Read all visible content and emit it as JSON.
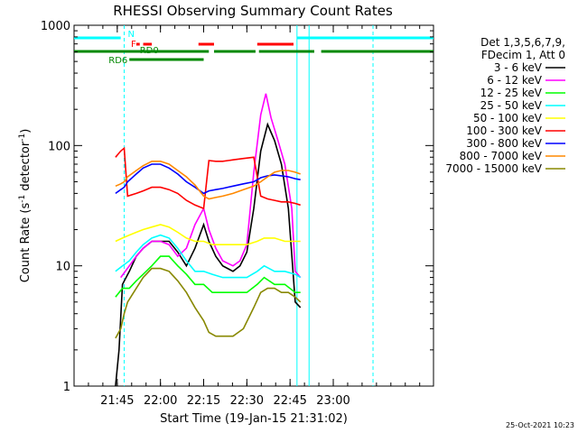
{
  "chart_data": {
    "type": "line",
    "title": "RHESSI Observing Summary Count Rates",
    "xlabel": "Start Time (19-Jan-15 21:31:02)",
    "ylabel_prefix": "Count Rate (s",
    "ylabel_mid": " detector",
    "ylabel_suffix": ")",
    "ylabel_exp": "-1",
    "yscale": "log",
    "ylim": [
      1,
      1000
    ],
    "xlim_minutes": [
      21.5,
      23.58
    ],
    "x_ticks": [
      {
        "label": "21:45",
        "t": 21.75
      },
      {
        "label": "22:00",
        "t": 22.0
      },
      {
        "label": "22:15",
        "t": 22.25
      },
      {
        "label": "22:30",
        "t": 22.5
      },
      {
        "label": "22:45",
        "t": 22.75
      },
      {
        "label": "23:00",
        "t": 23.0
      }
    ],
    "y_ticks": [
      {
        "label": "1",
        "v": 1
      },
      {
        "label": "10",
        "v": 10
      },
      {
        "label": "100",
        "v": 100
      },
      {
        "label": "1000",
        "v": 1000
      }
    ],
    "legend_header": [
      "Det 1,3,5,6,7,9,",
      "FDecim 1, Att 0"
    ],
    "series": [
      {
        "name": "3 - 6 keV",
        "color": "#000000",
        "points": [
          [
            21.74,
            1
          ],
          [
            21.76,
            2
          ],
          [
            21.78,
            7
          ],
          [
            21.82,
            9
          ],
          [
            21.86,
            12
          ],
          [
            21.9,
            14
          ],
          [
            21.95,
            16
          ],
          [
            22.0,
            16
          ],
          [
            22.05,
            16
          ],
          [
            22.1,
            13
          ],
          [
            22.15,
            10
          ],
          [
            22.2,
            14
          ],
          [
            22.25,
            22
          ],
          [
            22.28,
            16
          ],
          [
            22.32,
            12
          ],
          [
            22.36,
            10
          ],
          [
            22.42,
            9
          ],
          [
            22.46,
            10
          ],
          [
            22.5,
            13
          ],
          [
            22.54,
            30
          ],
          [
            22.58,
            90
          ],
          [
            22.62,
            150
          ],
          [
            22.66,
            110
          ],
          [
            22.7,
            70
          ],
          [
            22.74,
            30
          ],
          [
            22.78,
            5
          ],
          [
            22.81,
            4.5
          ]
        ]
      },
      {
        "name": "6 - 12 keV",
        "color": "#ff00ff",
        "points": [
          [
            21.77,
            8
          ],
          [
            21.82,
            10
          ],
          [
            21.86,
            12
          ],
          [
            21.9,
            14
          ],
          [
            21.95,
            16
          ],
          [
            22.0,
            16
          ],
          [
            22.05,
            15
          ],
          [
            22.1,
            12
          ],
          [
            22.15,
            14
          ],
          [
            22.2,
            22
          ],
          [
            22.25,
            30
          ],
          [
            22.28,
            20
          ],
          [
            22.32,
            14
          ],
          [
            22.36,
            11
          ],
          [
            22.42,
            10
          ],
          [
            22.46,
            11
          ],
          [
            22.5,
            15
          ],
          [
            22.54,
            60
          ],
          [
            22.58,
            180
          ],
          [
            22.61,
            270
          ],
          [
            22.64,
            170
          ],
          [
            22.68,
            110
          ],
          [
            22.72,
            70
          ],
          [
            22.76,
            30
          ],
          [
            22.78,
            9
          ],
          [
            22.81,
            8
          ]
        ]
      },
      {
        "name": "12 - 25 keV",
        "color": "#00ff00",
        "points": [
          [
            21.74,
            5.5
          ],
          [
            21.78,
            6.5
          ],
          [
            21.82,
            6.5
          ],
          [
            21.86,
            7.5
          ],
          [
            21.9,
            8.5
          ],
          [
            21.95,
            10
          ],
          [
            22.0,
            12
          ],
          [
            22.05,
            12
          ],
          [
            22.1,
            10
          ],
          [
            22.15,
            8.5
          ],
          [
            22.2,
            7
          ],
          [
            22.25,
            7
          ],
          [
            22.3,
            6
          ],
          [
            22.36,
            6
          ],
          [
            22.42,
            6
          ],
          [
            22.5,
            6
          ],
          [
            22.56,
            7
          ],
          [
            22.6,
            8
          ],
          [
            22.66,
            7
          ],
          [
            22.72,
            7
          ],
          [
            22.78,
            6
          ],
          [
            22.81,
            6
          ]
        ]
      },
      {
        "name": "25 - 50 keV",
        "color": "#00ffff",
        "points": [
          [
            21.74,
            9
          ],
          [
            21.78,
            10
          ],
          [
            21.82,
            11
          ],
          [
            21.86,
            13
          ],
          [
            21.9,
            15
          ],
          [
            21.95,
            17
          ],
          [
            22.0,
            18
          ],
          [
            22.05,
            17
          ],
          [
            22.1,
            14
          ],
          [
            22.15,
            11
          ],
          [
            22.2,
            9
          ],
          [
            22.25,
            9
          ],
          [
            22.3,
            8.5
          ],
          [
            22.36,
            8
          ],
          [
            22.42,
            8
          ],
          [
            22.5,
            8
          ],
          [
            22.56,
            9
          ],
          [
            22.6,
            10
          ],
          [
            22.66,
            9
          ],
          [
            22.72,
            9
          ],
          [
            22.78,
            8.5
          ],
          [
            22.81,
            8
          ]
        ]
      },
      {
        "name": "50 - 100 keV",
        "color": "#ffff00",
        "points": [
          [
            21.74,
            16
          ],
          [
            21.78,
            17
          ],
          [
            21.82,
            18
          ],
          [
            21.86,
            19
          ],
          [
            21.9,
            20
          ],
          [
            21.95,
            21
          ],
          [
            22.0,
            22
          ],
          [
            22.05,
            21
          ],
          [
            22.1,
            19
          ],
          [
            22.15,
            17
          ],
          [
            22.2,
            16
          ],
          [
            22.25,
            16
          ],
          [
            22.3,
            15
          ],
          [
            22.36,
            15
          ],
          [
            22.42,
            15
          ],
          [
            22.5,
            15
          ],
          [
            22.56,
            16
          ],
          [
            22.6,
            17
          ],
          [
            22.66,
            17
          ],
          [
            22.72,
            16
          ],
          [
            22.78,
            16
          ],
          [
            22.81,
            16
          ]
        ]
      },
      {
        "name": "100 - 300 keV",
        "color": "#ff0000",
        "points": [
          [
            21.74,
            80
          ],
          [
            21.77,
            90
          ],
          [
            21.79,
            95
          ],
          [
            21.81,
            38
          ],
          [
            21.86,
            40
          ],
          [
            21.9,
            42
          ],
          [
            21.95,
            45
          ],
          [
            22.0,
            45
          ],
          [
            22.05,
            43
          ],
          [
            22.1,
            40
          ],
          [
            22.15,
            35
          ],
          [
            22.2,
            32
          ],
          [
            22.25,
            30
          ],
          [
            22.28,
            75
          ],
          [
            22.32,
            74
          ],
          [
            22.36,
            74
          ],
          [
            22.42,
            76
          ],
          [
            22.48,
            78
          ],
          [
            22.54,
            80
          ],
          [
            22.58,
            38
          ],
          [
            22.62,
            36
          ],
          [
            22.66,
            35
          ],
          [
            22.7,
            34
          ],
          [
            22.74,
            34
          ],
          [
            22.78,
            33
          ],
          [
            22.81,
            32
          ]
        ]
      },
      {
        "name": "300 - 800 keV",
        "color": "#0000ff",
        "points": [
          [
            21.74,
            40
          ],
          [
            21.77,
            43
          ],
          [
            21.79,
            45
          ],
          [
            21.81,
            50
          ],
          [
            21.86,
            58
          ],
          [
            21.9,
            65
          ],
          [
            21.95,
            70
          ],
          [
            22.0,
            70
          ],
          [
            22.05,
            65
          ],
          [
            22.1,
            58
          ],
          [
            22.15,
            50
          ],
          [
            22.2,
            45
          ],
          [
            22.25,
            40
          ],
          [
            22.28,
            42
          ],
          [
            22.32,
            43
          ],
          [
            22.36,
            44
          ],
          [
            22.42,
            46
          ],
          [
            22.48,
            48
          ],
          [
            22.54,
            50
          ],
          [
            22.58,
            54
          ],
          [
            22.62,
            56
          ],
          [
            22.66,
            57
          ],
          [
            22.7,
            56
          ],
          [
            22.74,
            55
          ],
          [
            22.78,
            53
          ],
          [
            22.81,
            52
          ]
        ]
      },
      {
        "name": "800 - 7000 keV",
        "color": "#ff8800",
        "points": [
          [
            21.74,
            46
          ],
          [
            21.77,
            48
          ],
          [
            21.79,
            50
          ],
          [
            21.81,
            55
          ],
          [
            21.86,
            62
          ],
          [
            21.9,
            68
          ],
          [
            21.95,
            74
          ],
          [
            22.0,
            74
          ],
          [
            22.05,
            70
          ],
          [
            22.1,
            62
          ],
          [
            22.15,
            55
          ],
          [
            22.2,
            47
          ],
          [
            22.25,
            38
          ],
          [
            22.28,
            36
          ],
          [
            22.32,
            37
          ],
          [
            22.36,
            38
          ],
          [
            22.42,
            40
          ],
          [
            22.48,
            43
          ],
          [
            22.54,
            46
          ],
          [
            22.58,
            50
          ],
          [
            22.62,
            55
          ],
          [
            22.66,
            60
          ],
          [
            22.7,
            62
          ],
          [
            22.74,
            62
          ],
          [
            22.78,
            60
          ],
          [
            22.81,
            58
          ]
        ]
      },
      {
        "name": "7000 - 15000 keV",
        "color": "#888800",
        "points": [
          [
            21.74,
            2.5
          ],
          [
            21.77,
            3
          ],
          [
            21.79,
            4
          ],
          [
            21.81,
            5
          ],
          [
            21.86,
            6.5
          ],
          [
            21.9,
            8
          ],
          [
            21.95,
            9.5
          ],
          [
            22.0,
            9.5
          ],
          [
            22.05,
            9
          ],
          [
            22.1,
            7.5
          ],
          [
            22.15,
            6
          ],
          [
            22.2,
            4.5
          ],
          [
            22.25,
            3.5
          ],
          [
            22.28,
            2.8
          ],
          [
            22.32,
            2.6
          ],
          [
            22.36,
            2.6
          ],
          [
            22.42,
            2.6
          ],
          [
            22.48,
            3
          ],
          [
            22.54,
            4.5
          ],
          [
            22.58,
            6
          ],
          [
            22.62,
            6.5
          ],
          [
            22.66,
            6.5
          ],
          [
            22.7,
            6
          ],
          [
            22.74,
            6
          ],
          [
            22.78,
            5.5
          ],
          [
            22.81,
            5
          ]
        ]
      }
    ],
    "vertical_lines": [
      {
        "t": 21.79,
        "color": "#00ffff",
        "style": "dashed"
      },
      {
        "t": 22.79,
        "color": "#00ffff",
        "style": "solid"
      },
      {
        "t": 22.86,
        "color": "#00ffff",
        "style": "solid"
      },
      {
        "t": 23.23,
        "color": "#00ffff",
        "style": "dashed"
      }
    ],
    "flags": [
      {
        "label": "N",
        "color": "#00ffff",
        "row": 0,
        "segments": [
          [
            21.5,
            21.77
          ],
          [
            22.79,
            23.58
          ]
        ]
      },
      {
        "label": "F",
        "color": "#ff0000",
        "row": 1,
        "segments": [
          [
            21.86,
            21.88
          ],
          [
            21.9,
            21.95
          ],
          [
            22.22,
            22.31
          ],
          [
            22.56,
            22.77
          ]
        ]
      },
      {
        "label": "RD0",
        "color": "#008800",
        "row": 2,
        "segments": [
          [
            21.5,
            22.28
          ],
          [
            22.31,
            22.55
          ],
          [
            22.57,
            22.89
          ],
          [
            22.93,
            23.58
          ]
        ]
      },
      {
        "label": "RD6",
        "color": "#008800",
        "row": 3,
        "segments": [
          [
            21.82,
            22.25
          ]
        ]
      }
    ],
    "timestamp": "25-Oct-2021 10:23"
  }
}
